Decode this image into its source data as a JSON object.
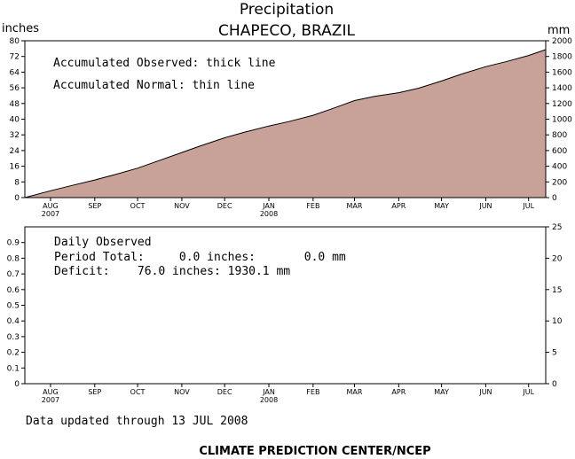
{
  "header": {
    "title": "Precipitation",
    "subtitle": "CHAPECO, BRAZIL"
  },
  "footer": {
    "updated": "Data updated through 13 JUL 2008",
    "credit": "CLIMATE PREDICTION CENTER/NCEP"
  },
  "colors": {
    "fill": "#c8a298",
    "line": "#000000",
    "background": "#ffffff"
  },
  "chart_data": [
    {
      "type": "area",
      "left_axis_label": "inches",
      "right_axis_label": "mm",
      "notes": [
        "Accumulated Observed: thick line",
        "Accumulated Normal: thin line"
      ],
      "ylim": [
        0,
        80
      ],
      "yticks": [
        "0",
        "8",
        "16",
        "24",
        "32",
        "40",
        "48",
        "56",
        "64",
        "72",
        "80"
      ],
      "y2lim": [
        0,
        2000
      ],
      "y2ticks": [
        "0",
        "200",
        "400",
        "600",
        "800",
        "1000",
        "1200",
        "1400",
        "1600",
        "1800",
        "2000"
      ],
      "months": [
        {
          "label": "AUG",
          "year": "2007"
        },
        {
          "label": "SEP",
          "year": ""
        },
        {
          "label": "OCT",
          "year": ""
        },
        {
          "label": "NOV",
          "year": ""
        },
        {
          "label": "DEC",
          "year": ""
        },
        {
          "label": "JAN",
          "year": "2008"
        },
        {
          "label": "FEB",
          "year": ""
        },
        {
          "label": "MAR",
          "year": ""
        },
        {
          "label": "APR",
          "year": ""
        },
        {
          "label": "MAY",
          "year": ""
        },
        {
          "label": "JUN",
          "year": ""
        },
        {
          "label": "JUL",
          "year": ""
        }
      ],
      "x_range": [
        "2007-07-14",
        "2008-07-13"
      ],
      "series": [
        {
          "x": [
            "2007-07-14",
            "2007-08-01",
            "2007-08-15",
            "2007-09-01",
            "2007-09-15",
            "2007-10-01",
            "2007-10-15",
            "2007-11-01",
            "2007-11-15",
            "2007-12-01",
            "2007-12-15",
            "2008-01-01",
            "2008-01-15",
            "2008-02-01",
            "2008-02-15",
            "2008-03-01",
            "2008-03-15",
            "2008-04-01",
            "2008-04-15",
            "2008-05-01",
            "2008-05-15",
            "2008-06-01",
            "2008-06-15",
            "2008-07-01",
            "2008-07-13"
          ],
          "values": [
            0,
            3.5,
            6.0,
            9.0,
            11.7,
            15.0,
            18.6,
            23.0,
            26.6,
            30.5,
            33.4,
            36.5,
            38.8,
            42.0,
            45.5,
            49.5,
            51.6,
            53.5,
            55.8,
            59.5,
            63.0,
            66.8,
            69.3,
            72.5,
            75.5
          ]
        }
      ]
    },
    {
      "type": "bar",
      "notes": [
        "Daily Observed",
        "Period Total:     0.0 inches:       0.0 mm",
        "Deficit:    76.0 inches: 1930.1 mm"
      ],
      "ylim": [
        0,
        1
      ],
      "yticks": [
        "0",
        "0.1",
        "0.2",
        "0.3",
        "0.4",
        "0.5",
        "0.6",
        "0.7",
        "0.8",
        "0.9"
      ],
      "y2lim": [
        0,
        25
      ],
      "y2ticks": [
        "0",
        "5",
        "10",
        "15",
        "20",
        "25"
      ],
      "x_range": [
        "2007-07-14",
        "2008-07-13"
      ],
      "series": [
        {
          "x": [],
          "values": []
        }
      ]
    }
  ]
}
